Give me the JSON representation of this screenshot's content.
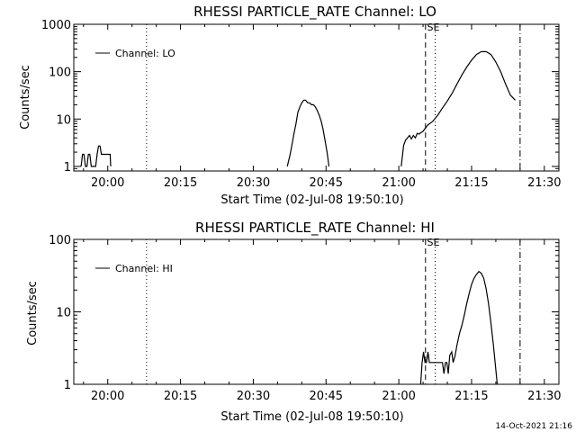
{
  "footer": {
    "timestamp": "14-Oct-2021 21:16"
  },
  "chart_data": [
    {
      "type": "line",
      "title": "RHESSI PARTICLE_RATE Channel: LO",
      "xlabel": "Start Time (02-Jul-08 19:50:10)",
      "ylabel": "Counts/sec",
      "yscale": "log",
      "xlim": [
        -7,
        93
      ],
      "ylim": [
        0.8,
        1000
      ],
      "x_tick_labels": [
        "20:00",
        "20:15",
        "20:30",
        "20:45",
        "21:00",
        "21:15",
        "21:30"
      ],
      "x_tick_values": [
        0,
        15,
        30,
        45,
        60,
        75,
        90
      ],
      "y_tick_labels": [
        "1",
        "10",
        "100",
        "1000"
      ],
      "y_tick_values": [
        1,
        10,
        100,
        1000
      ],
      "legend": {
        "entry": "Channel: LO",
        "placement": "top-left"
      },
      "markers": [
        {
          "x": 8,
          "style": "dotted",
          "label": ""
        },
        {
          "x": 65.5,
          "style": "dashed",
          "label": ""
        },
        {
          "x": 67.5,
          "style": "dotted",
          "label": "SE"
        },
        {
          "x": 85,
          "style": "dash-dot",
          "label": ""
        }
      ],
      "series": [
        {
          "name": "Channel: LO",
          "segments": [
            [
              [
                -5.5,
                1
              ],
              [
                -5.2,
                1.8
              ],
              [
                -4.9,
                1.8
              ],
              [
                -4.6,
                1
              ],
              [
                -4.3,
                1
              ],
              [
                -4,
                1.8
              ],
              [
                -3.7,
                1.8
              ],
              [
                -3.4,
                1
              ],
              [
                -3.1,
                1
              ],
              [
                -2.8,
                1
              ],
              [
                -2.5,
                1
              ],
              [
                -2.2,
                1.8
              ],
              [
                -1.9,
                2.7
              ],
              [
                -1.6,
                2.7
              ],
              [
                -1.3,
                1.8
              ],
              [
                -1,
                1.8
              ],
              [
                -0.5,
                1.8
              ],
              [
                0,
                1.8
              ],
              [
                0.5,
                1.8
              ],
              [
                0.6,
                1
              ]
            ],
            [
              [
                37,
                1
              ],
              [
                37.6,
                1.8
              ],
              [
                38,
                3
              ],
              [
                38.4,
                5
              ],
              [
                38.8,
                8
              ],
              [
                39.2,
                14
              ],
              [
                39.6,
                18
              ],
              [
                40,
                22
              ],
              [
                40.4,
                25
              ],
              [
                40.8,
                25
              ],
              [
                41.2,
                22
              ],
              [
                41.6,
                22
              ],
              [
                42,
                20
              ],
              [
                42.4,
                20
              ],
              [
                42.8,
                18
              ],
              [
                43.2,
                15
              ],
              [
                43.6,
                12
              ],
              [
                44,
                9
              ],
              [
                44.4,
                6
              ],
              [
                44.8,
                3.5
              ],
              [
                45.2,
                2
              ],
              [
                45.6,
                1
              ]
            ],
            [
              [
                60.5,
                1
              ],
              [
                61,
                2.8
              ],
              [
                61.4,
                3.6
              ],
              [
                61.8,
                4
              ],
              [
                62.2,
                4.5
              ],
              [
                62.6,
                3.8
              ],
              [
                63,
                4.5
              ],
              [
                63.4,
                4
              ],
              [
                63.8,
                5
              ],
              [
                64.2,
                4.8
              ],
              [
                64.6,
                5.2
              ],
              [
                65,
                5.5
              ],
              [
                65.5,
                6.5
              ],
              [
                66,
                7.5
              ],
              [
                67,
                9
              ],
              [
                68,
                12
              ],
              [
                69,
                17
              ],
              [
                70,
                24
              ],
              [
                71,
                35
              ],
              [
                72,
                55
              ],
              [
                73,
                85
              ],
              [
                74,
                125
              ],
              [
                75,
                175
              ],
              [
                76,
                230
              ],
              [
                77,
                265
              ],
              [
                78,
                265
              ],
              [
                79,
                230
              ],
              [
                80,
                160
              ],
              [
                81,
                100
              ],
              [
                82,
                55
              ],
              [
                83,
                32
              ],
              [
                84,
                25
              ]
            ]
          ]
        }
      ]
    },
    {
      "type": "line",
      "title": "RHESSI PARTICLE_RATE Channel: HI",
      "xlabel": "Start Time (02-Jul-08 19:50:10)",
      "ylabel": "Counts/sec",
      "yscale": "log",
      "xlim": [
        -7,
        93
      ],
      "ylim": [
        1,
        100
      ],
      "x_tick_labels": [
        "20:00",
        "20:15",
        "20:30",
        "20:45",
        "21:00",
        "21:15",
        "21:30"
      ],
      "x_tick_values": [
        0,
        15,
        30,
        45,
        60,
        75,
        90
      ],
      "y_tick_labels": [
        "1",
        "10",
        "100"
      ],
      "y_tick_values": [
        1,
        10,
        100
      ],
      "legend": {
        "entry": "Channel: HI",
        "placement": "top-left"
      },
      "markers": [
        {
          "x": 8,
          "style": "dotted",
          "label": ""
        },
        {
          "x": 65.5,
          "style": "dashed",
          "label": ""
        },
        {
          "x": 67.5,
          "style": "dotted",
          "label": "SE"
        },
        {
          "x": 85,
          "style": "dash-dot",
          "label": ""
        }
      ],
      "series": [
        {
          "name": "Channel: HI",
          "segments": [
            [
              [
                64.5,
                1
              ],
              [
                64.8,
                2
              ],
              [
                65.1,
                2.8
              ],
              [
                65.4,
                2
              ],
              [
                65.7,
                2
              ],
              [
                66,
                2.8
              ],
              [
                66.3,
                2
              ],
              [
                66.6,
                2
              ],
              [
                66.9,
                2
              ],
              [
                67.2,
                2
              ],
              [
                67.5,
                2
              ],
              [
                67.8,
                2
              ],
              [
                68.1,
                2
              ],
              [
                68.4,
                2
              ],
              [
                68.7,
                2
              ],
              [
                69,
                2
              ],
              [
                69.3,
                1.4
              ],
              [
                69.6,
                2
              ],
              [
                69.9,
                2
              ],
              [
                70.2,
                1.4
              ],
              [
                70.5,
                2.5
              ],
              [
                70.9,
                2.8
              ],
              [
                71.2,
                2
              ],
              [
                71.6,
                2.5
              ],
              [
                72,
                3.5
              ],
              [
                72.5,
                5
              ],
              [
                73,
                6.5
              ],
              [
                73.5,
                9
              ],
              [
                74,
                13
              ],
              [
                74.5,
                18
              ],
              [
                75,
                24
              ],
              [
                75.5,
                29
              ],
              [
                76,
                33
              ],
              [
                76.5,
                36
              ],
              [
                77,
                34
              ],
              [
                77.5,
                29
              ],
              [
                78,
                21
              ],
              [
                78.5,
                13
              ],
              [
                79,
                7
              ],
              [
                79.5,
                3.5
              ],
              [
                80,
                1.6
              ],
              [
                80.3,
                1
              ]
            ]
          ]
        }
      ]
    }
  ]
}
